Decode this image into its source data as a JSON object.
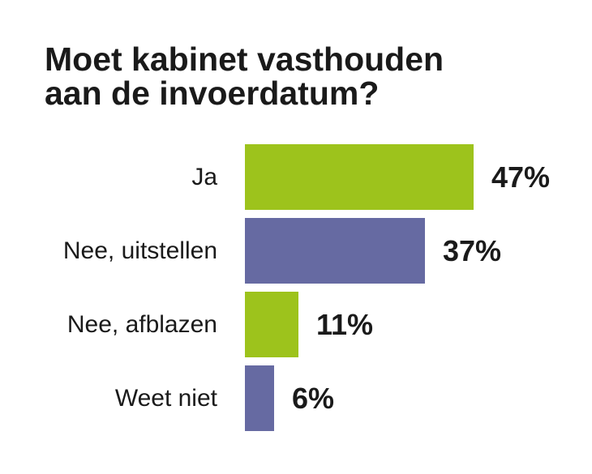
{
  "chart_data": {
    "type": "bar",
    "orientation": "horizontal",
    "title_lines": [
      "Moet kabinet vasthouden",
      "aan de invoerdatum?"
    ],
    "categories": [
      "Ja",
      "Nee, uitstellen",
      "Nee, afblazen",
      "Weet niet"
    ],
    "values": [
      47,
      37,
      11,
      6
    ],
    "value_labels": [
      "47%",
      "37%",
      "11%",
      "6%"
    ],
    "unit": "%",
    "bar_colors": [
      "#9dc31c",
      "#666aa2",
      "#9dc31c",
      "#666aa2"
    ],
    "xlim": [
      0,
      47
    ],
    "xlabel": "",
    "ylabel": "",
    "grid": false,
    "legend": "none"
  }
}
